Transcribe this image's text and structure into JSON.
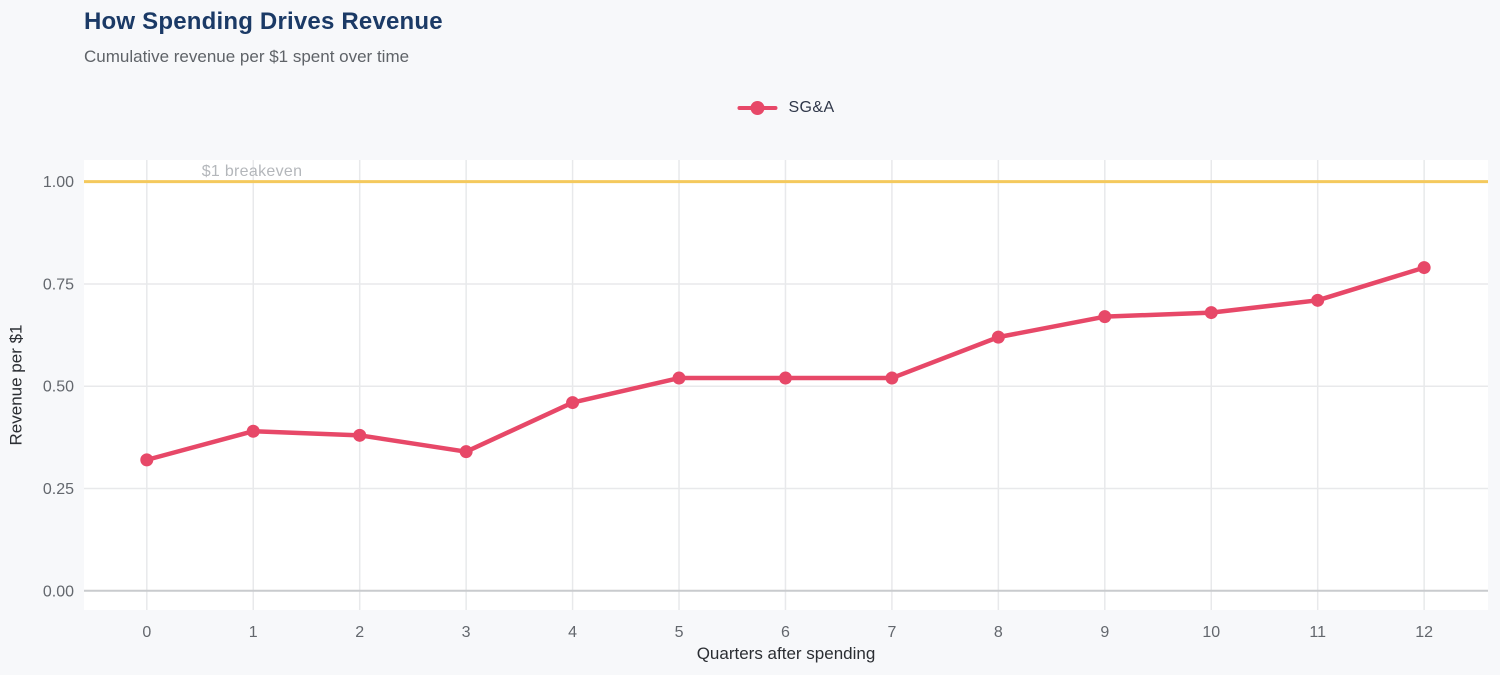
{
  "header": {
    "title": "How Spending Drives Revenue",
    "subtitle": "Cumulative revenue per $1 spent over time"
  },
  "legend": {
    "series_label": "SG&A"
  },
  "colors": {
    "background": "#f7f8fa",
    "plot_background": "#ffffff",
    "title_navy": "#1b3a66",
    "subtitle_gray": "#5f6368",
    "series_pink": "#e74868",
    "breakeven_yellow": "#f4c95d",
    "breakeven_text": "#b4b7bb",
    "grid": "#e8e9eb",
    "zero_line": "#c9cbce",
    "tick": "#63676d",
    "axis_title": "#2b2e33"
  },
  "chart_data": {
    "type": "line",
    "title": "How Spending Drives Revenue",
    "subtitle": "Cumulative revenue per $1 spent over time",
    "xlabel": "Quarters after spending",
    "ylabel": "Revenue per $1",
    "x": [
      0,
      1,
      2,
      3,
      4,
      5,
      6,
      7,
      8,
      9,
      10,
      11,
      12
    ],
    "series": [
      {
        "name": "SG&A",
        "color": "#e74868",
        "values": [
          0.32,
          0.39,
          0.38,
          0.34,
          0.46,
          0.52,
          0.52,
          0.52,
          0.62,
          0.67,
          0.68,
          0.71,
          0.79
        ]
      }
    ],
    "xticks": [
      0,
      1,
      2,
      3,
      4,
      5,
      6,
      7,
      8,
      9,
      10,
      11,
      12
    ],
    "yticks": [
      {
        "value": 0,
        "label": "0.00"
      },
      {
        "value": 0.25,
        "label": "0.25"
      },
      {
        "value": 0.5,
        "label": "0.50"
      },
      {
        "value": 0.75,
        "label": "0.75"
      },
      {
        "value": 1,
        "label": "1.00"
      }
    ],
    "xlim": [
      -0.59,
      12.6
    ],
    "ylim": [
      -0.047,
      1.053
    ],
    "grid": true,
    "legend_position": "top-center",
    "reference_line": {
      "value": 1.0,
      "label": "$1 breakeven",
      "color": "#f4c95d"
    }
  }
}
